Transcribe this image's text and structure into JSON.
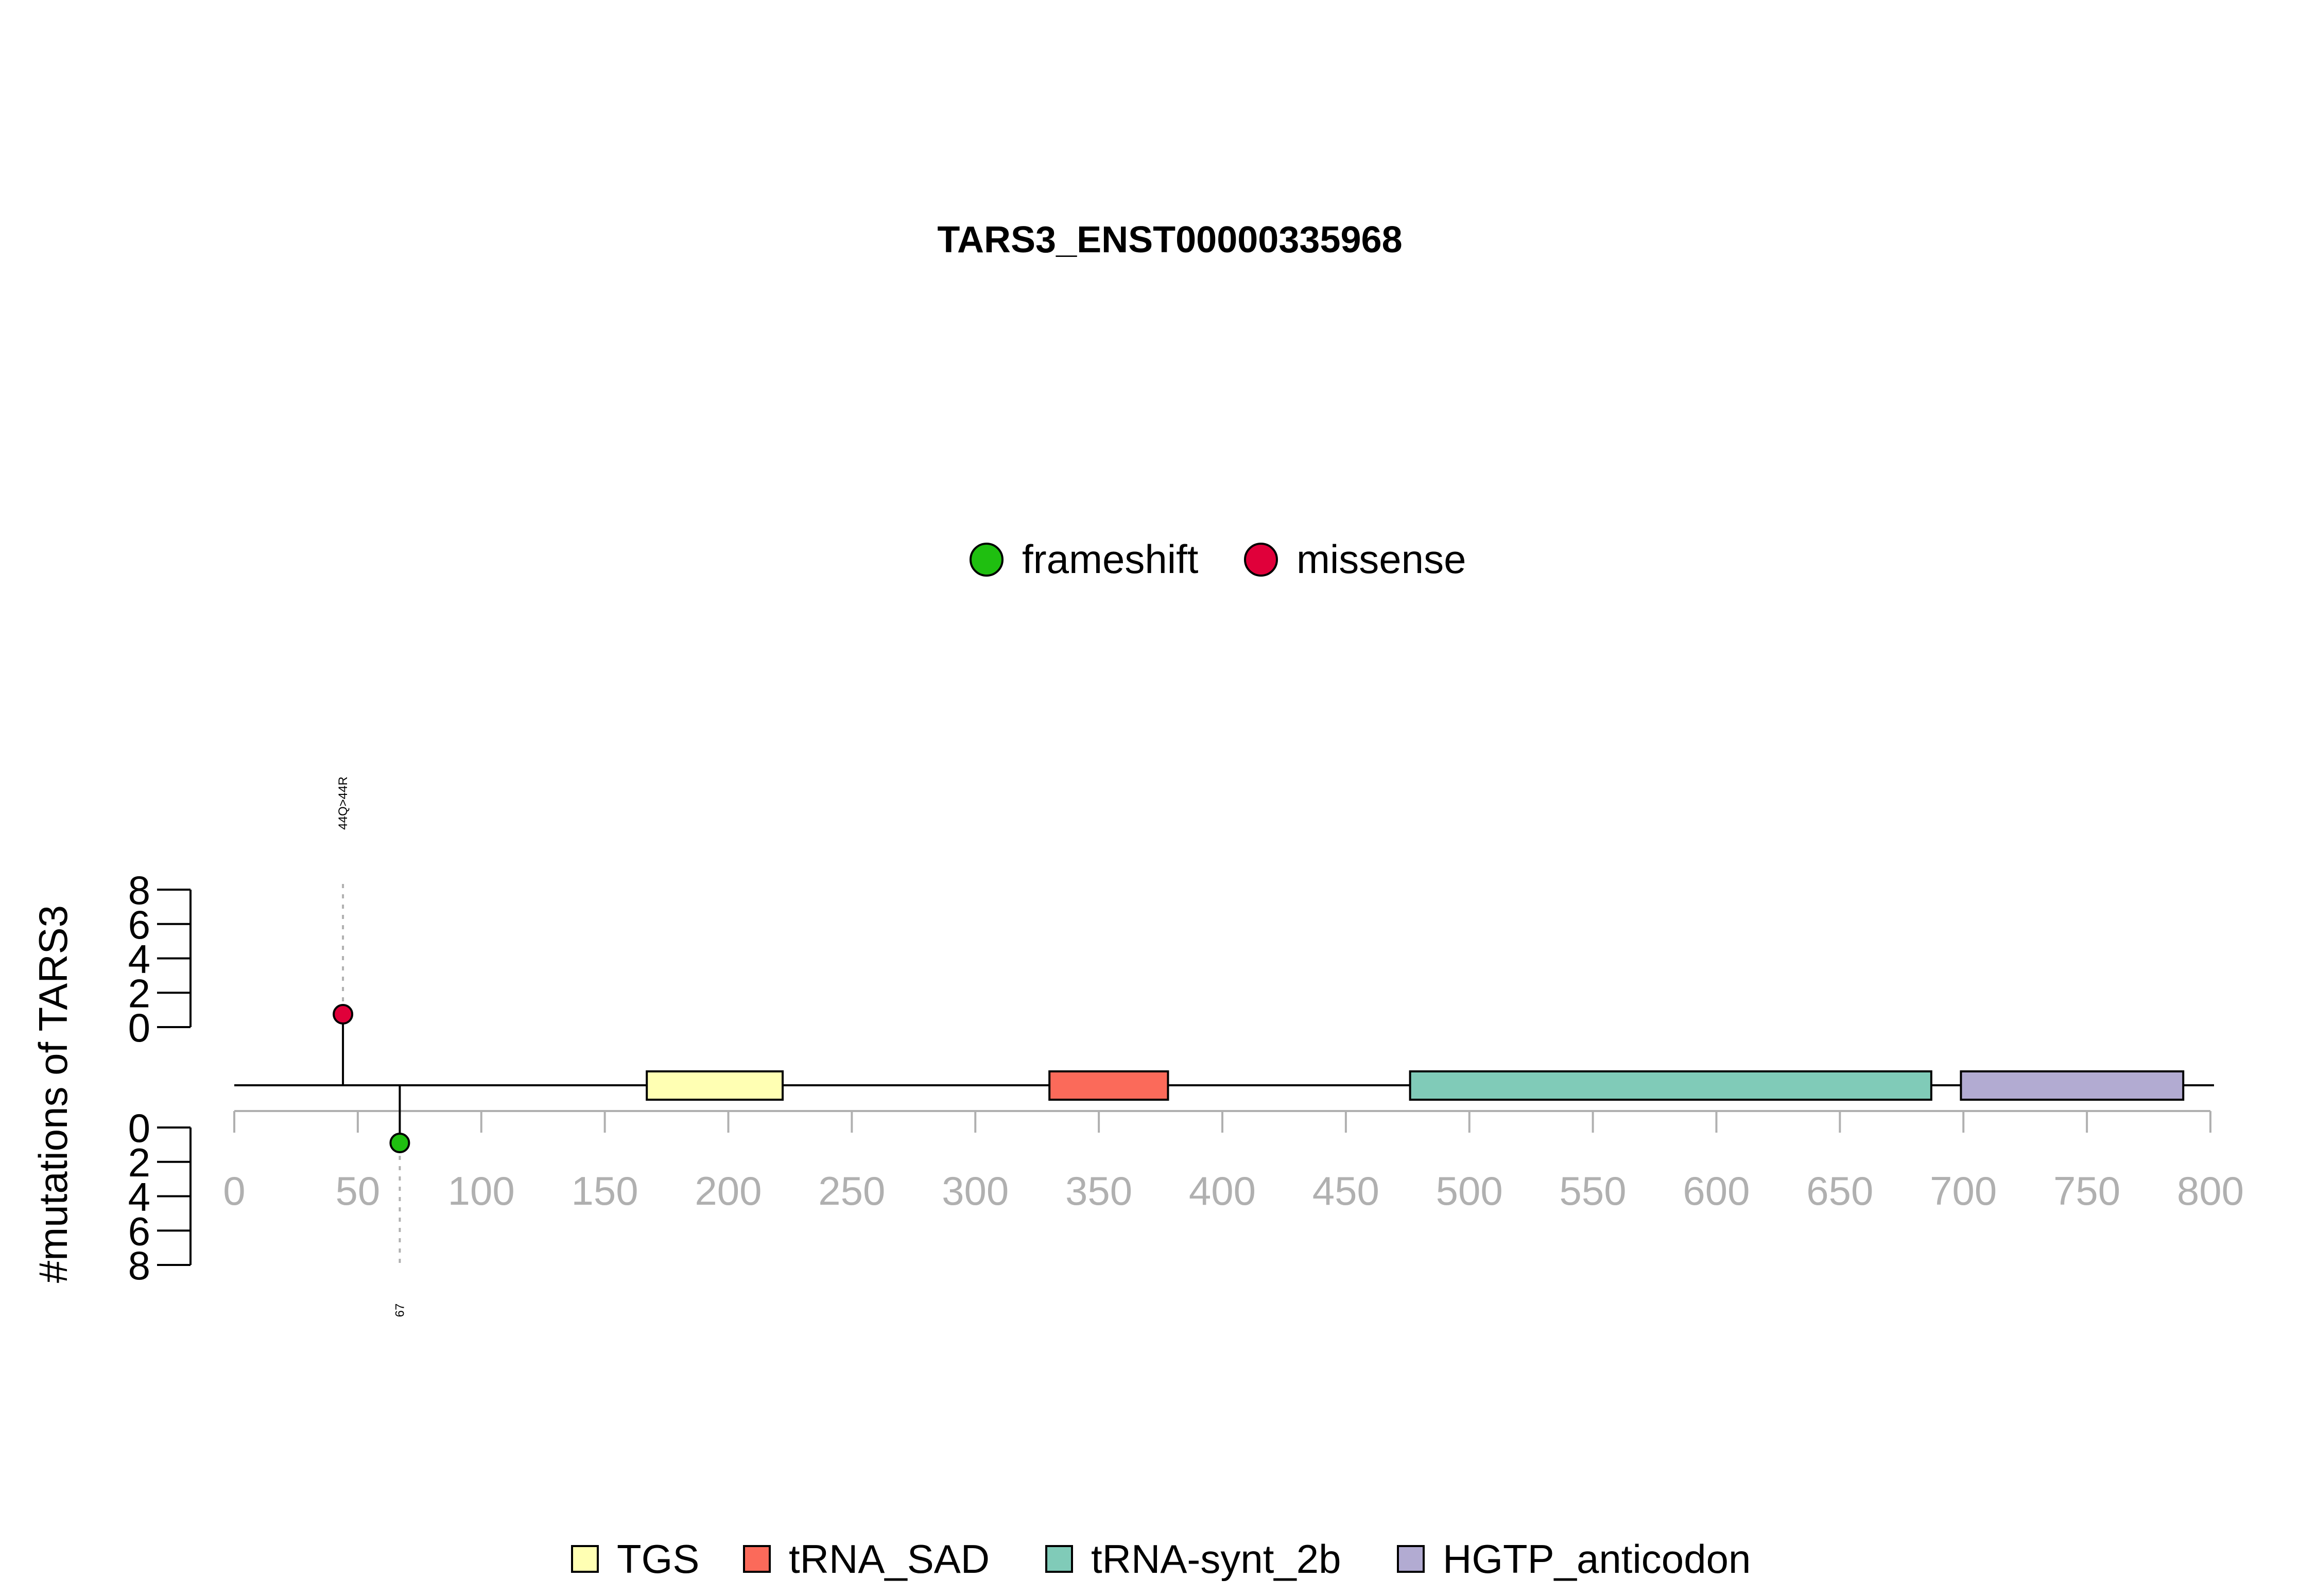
{
  "chart_data": {
    "type": "lollipop",
    "title": "TARS3_ENST00000335968",
    "ylabel": "#mutations of TARS3",
    "xlim": [
      0,
      800
    ],
    "x_ticks": [
      "0",
      "50",
      "100",
      "150",
      "200",
      "250",
      "300",
      "350",
      "400",
      "450",
      "500",
      "550",
      "600",
      "650",
      "700",
      "750",
      "800"
    ],
    "y_ticks_upper": [
      "0",
      "2",
      "4",
      "6",
      "8"
    ],
    "y_ticks_lower": [
      "0",
      "2",
      "4",
      "6",
      "8"
    ],
    "protein_length": 802,
    "mutation_types": [
      {
        "name": "frameshift",
        "color": "#1fbf10"
      },
      {
        "name": "missense",
        "color": "#e0003a"
      }
    ],
    "domains": [
      {
        "name": "TGS",
        "start": 167,
        "end": 222,
        "color": "#ffffb3"
      },
      {
        "name": "tRNA_SAD",
        "start": 330,
        "end": 378,
        "color": "#fb6a5a"
      },
      {
        "name": "tRNA-synt_2b",
        "start": 476,
        "end": 687,
        "color": "#80cbb8"
      },
      {
        "name": "HGTP_anticodon",
        "start": 699,
        "end": 789,
        "color": "#b2abd2"
      }
    ],
    "mutations": [
      {
        "position": 44,
        "count": 1,
        "type": "missense",
        "side": "upper",
        "label": "44Q>44R",
        "color": "#e0003a"
      },
      {
        "position": 67,
        "count": 1,
        "type": "frameshift",
        "side": "lower",
        "label": "67",
        "color": "#1fbf10"
      }
    ]
  }
}
